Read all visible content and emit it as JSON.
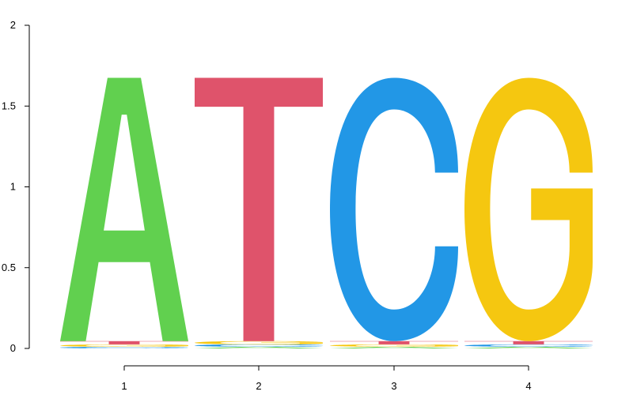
{
  "chart_data": {
    "type": "sequence-logo",
    "title": "",
    "xlabel": "",
    "ylabel": "",
    "ylim": [
      0,
      2
    ],
    "y_ticks": [
      "0",
      "0.5",
      "1",
      "1.5",
      "2"
    ],
    "x_ticks": [
      "1",
      "2",
      "3",
      "4"
    ],
    "positions": [
      1,
      2,
      3,
      4
    ],
    "colors": {
      "A": "#61D04F",
      "C": "#2297E6",
      "G": "#F5C710",
      "T": "#DF536B"
    },
    "columns": [
      {
        "position": 1,
        "stack": [
          {
            "letter": "C",
            "height": 0.01
          },
          {
            "letter": "G",
            "height": 0.015
          },
          {
            "letter": "T",
            "height": 0.02
          },
          {
            "letter": "A",
            "height": 1.63
          }
        ],
        "dominant": "A"
      },
      {
        "position": 2,
        "stack": [
          {
            "letter": "A",
            "height": 0.01
          },
          {
            "letter": "C",
            "height": 0.015
          },
          {
            "letter": "G",
            "height": 0.02
          },
          {
            "letter": "T",
            "height": 1.63
          }
        ],
        "dominant": "T"
      },
      {
        "position": 3,
        "stack": [
          {
            "letter": "A",
            "height": 0.01
          },
          {
            "letter": "G",
            "height": 0.015
          },
          {
            "letter": "T",
            "height": 0.02
          },
          {
            "letter": "C",
            "height": 1.63
          }
        ],
        "dominant": "C"
      },
      {
        "position": 4,
        "stack": [
          {
            "letter": "A",
            "height": 0.01
          },
          {
            "letter": "C",
            "height": 0.015
          },
          {
            "letter": "T",
            "height": 0.02
          },
          {
            "letter": "G",
            "height": 1.63
          }
        ],
        "dominant": "G"
      }
    ]
  }
}
